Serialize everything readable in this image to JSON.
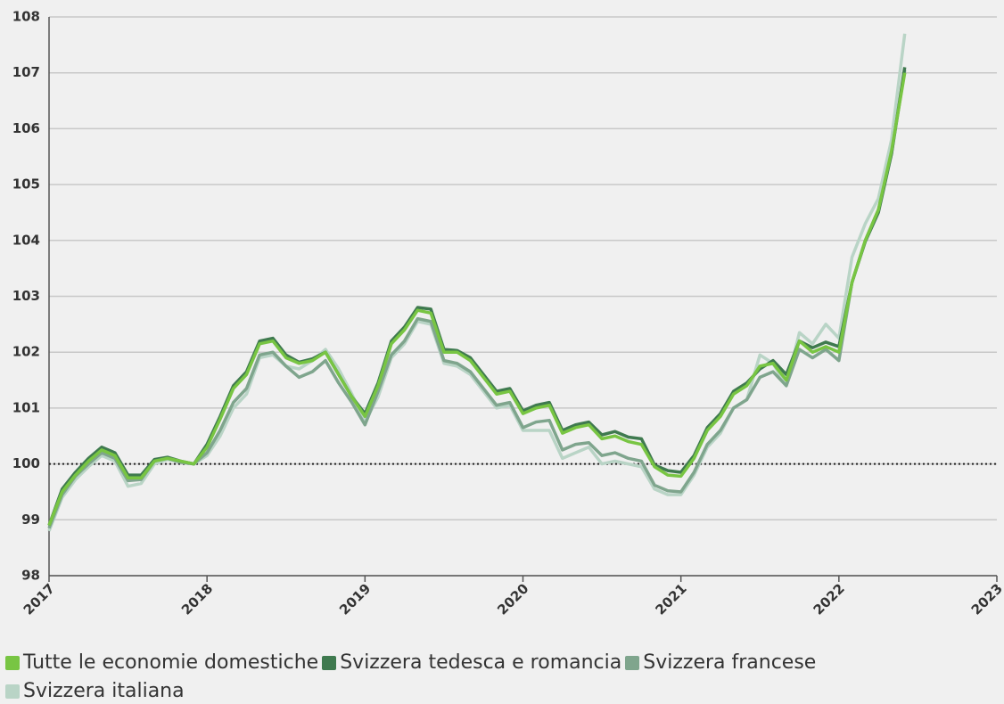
{
  "chart_data": {
    "type": "line",
    "x": [
      2017,
      2017.083,
      2017.167,
      2017.25,
      2017.333,
      2017.417,
      2017.5,
      2017.583,
      2017.667,
      2017.75,
      2017.833,
      2017.917,
      2018,
      2018.083,
      2018.167,
      2018.25,
      2018.333,
      2018.417,
      2018.5,
      2018.583,
      2018.667,
      2018.75,
      2018.833,
      2018.917,
      2019,
      2019.083,
      2019.167,
      2019.25,
      2019.333,
      2019.417,
      2019.5,
      2019.583,
      2019.667,
      2019.75,
      2019.833,
      2019.917,
      2020,
      2020.083,
      2020.167,
      2020.25,
      2020.333,
      2020.417,
      2020.5,
      2020.583,
      2020.667,
      2020.75,
      2020.833,
      2020.917,
      2021,
      2021.083,
      2021.167,
      2021.25,
      2021.333,
      2021.417,
      2021.5,
      2021.583,
      2021.667,
      2021.75,
      2021.833,
      2021.917,
      2022,
      2022.083,
      2022.167,
      2022.25,
      2022.333,
      2022.417
    ],
    "series": [
      {
        "name": "Tutte le economie domestiche",
        "color": "#78c543",
        "values": [
          98.9,
          99.5,
          99.8,
          100.05,
          100.25,
          100.15,
          99.75,
          99.75,
          100.05,
          100.1,
          100.05,
          100.0,
          100.3,
          100.8,
          101.35,
          101.6,
          102.15,
          102.2,
          101.9,
          101.8,
          101.85,
          102.0,
          101.6,
          101.2,
          100.85,
          101.4,
          102.15,
          102.4,
          102.75,
          102.7,
          102.0,
          102.0,
          101.85,
          101.55,
          101.25,
          101.3,
          100.9,
          101.0,
          101.05,
          100.55,
          100.65,
          100.7,
          100.45,
          100.5,
          100.4,
          100.35,
          99.95,
          99.8,
          99.78,
          100.1,
          100.6,
          100.85,
          101.25,
          101.4,
          101.75,
          101.8,
          101.5,
          102.2,
          102.0,
          102.1,
          102.0,
          103.25,
          104.0,
          104.55,
          105.6,
          107.0
        ]
      },
      {
        "name": "Svizzera tedesca e romancia",
        "color": "#3f7a4f",
        "values": [
          98.9,
          99.55,
          99.85,
          100.1,
          100.3,
          100.2,
          99.8,
          99.8,
          100.08,
          100.12,
          100.05,
          100.0,
          100.35,
          100.85,
          101.4,
          101.65,
          102.2,
          102.25,
          101.95,
          101.82,
          101.88,
          102.0,
          101.6,
          101.2,
          100.9,
          101.45,
          102.2,
          102.45,
          102.8,
          102.77,
          102.05,
          102.03,
          101.9,
          101.6,
          101.3,
          101.35,
          100.95,
          101.05,
          101.1,
          100.6,
          100.7,
          100.75,
          100.52,
          100.58,
          100.48,
          100.45,
          99.98,
          99.88,
          99.85,
          100.15,
          100.65,
          100.9,
          101.3,
          101.45,
          101.7,
          101.85,
          101.6,
          102.2,
          102.08,
          102.18,
          102.1,
          103.25,
          103.98,
          104.5,
          105.55,
          107.1
        ]
      },
      {
        "name": "Svizzera francese",
        "color": "#7fa58d",
        "values": [
          98.85,
          99.45,
          99.78,
          100.0,
          100.2,
          100.1,
          99.7,
          99.72,
          100.05,
          100.1,
          100.03,
          100.0,
          100.2,
          100.6,
          101.1,
          101.35,
          101.95,
          102.0,
          101.75,
          101.55,
          101.65,
          101.85,
          101.45,
          101.1,
          100.7,
          101.3,
          101.95,
          102.2,
          102.6,
          102.55,
          101.85,
          101.8,
          101.65,
          101.35,
          101.05,
          101.1,
          100.65,
          100.75,
          100.78,
          100.25,
          100.35,
          100.38,
          100.15,
          100.2,
          100.1,
          100.05,
          99.62,
          99.52,
          99.5,
          99.85,
          100.35,
          100.6,
          101.0,
          101.15,
          101.55,
          101.65,
          101.4,
          102.05,
          101.9,
          102.05,
          101.85,
          103.25,
          104.0,
          104.55,
          105.55,
          107.05
        ]
      },
      {
        "name": "Svizzera italiana",
        "color": "#b9d4c6",
        "values": [
          98.8,
          99.4,
          99.72,
          99.95,
          100.15,
          100.05,
          99.6,
          99.65,
          100.0,
          100.08,
          100.03,
          100.0,
          100.15,
          100.5,
          101.0,
          101.25,
          101.9,
          101.95,
          101.75,
          101.7,
          101.85,
          102.05,
          101.7,
          101.25,
          100.75,
          101.2,
          101.9,
          102.15,
          102.55,
          102.5,
          101.8,
          101.75,
          101.6,
          101.3,
          101.0,
          101.05,
          100.6,
          100.6,
          100.6,
          100.1,
          100.2,
          100.3,
          100.0,
          100.05,
          100.0,
          99.95,
          99.55,
          99.45,
          99.45,
          99.8,
          100.3,
          100.55,
          101.0,
          101.15,
          101.95,
          101.8,
          101.4,
          102.35,
          102.15,
          102.5,
          102.25,
          103.7,
          104.3,
          104.75,
          105.8,
          107.7
        ]
      }
    ],
    "xlim": [
      2017,
      2023
    ],
    "xticks": [
      2017,
      2018,
      2019,
      2020,
      2021,
      2022,
      2023
    ],
    "ylim": [
      98,
      108
    ],
    "yticks": [
      98,
      99,
      100,
      101,
      102,
      103,
      104,
      105,
      106,
      107,
      108
    ],
    "reference_line": 100,
    "grid": true,
    "legend": "bottom"
  }
}
